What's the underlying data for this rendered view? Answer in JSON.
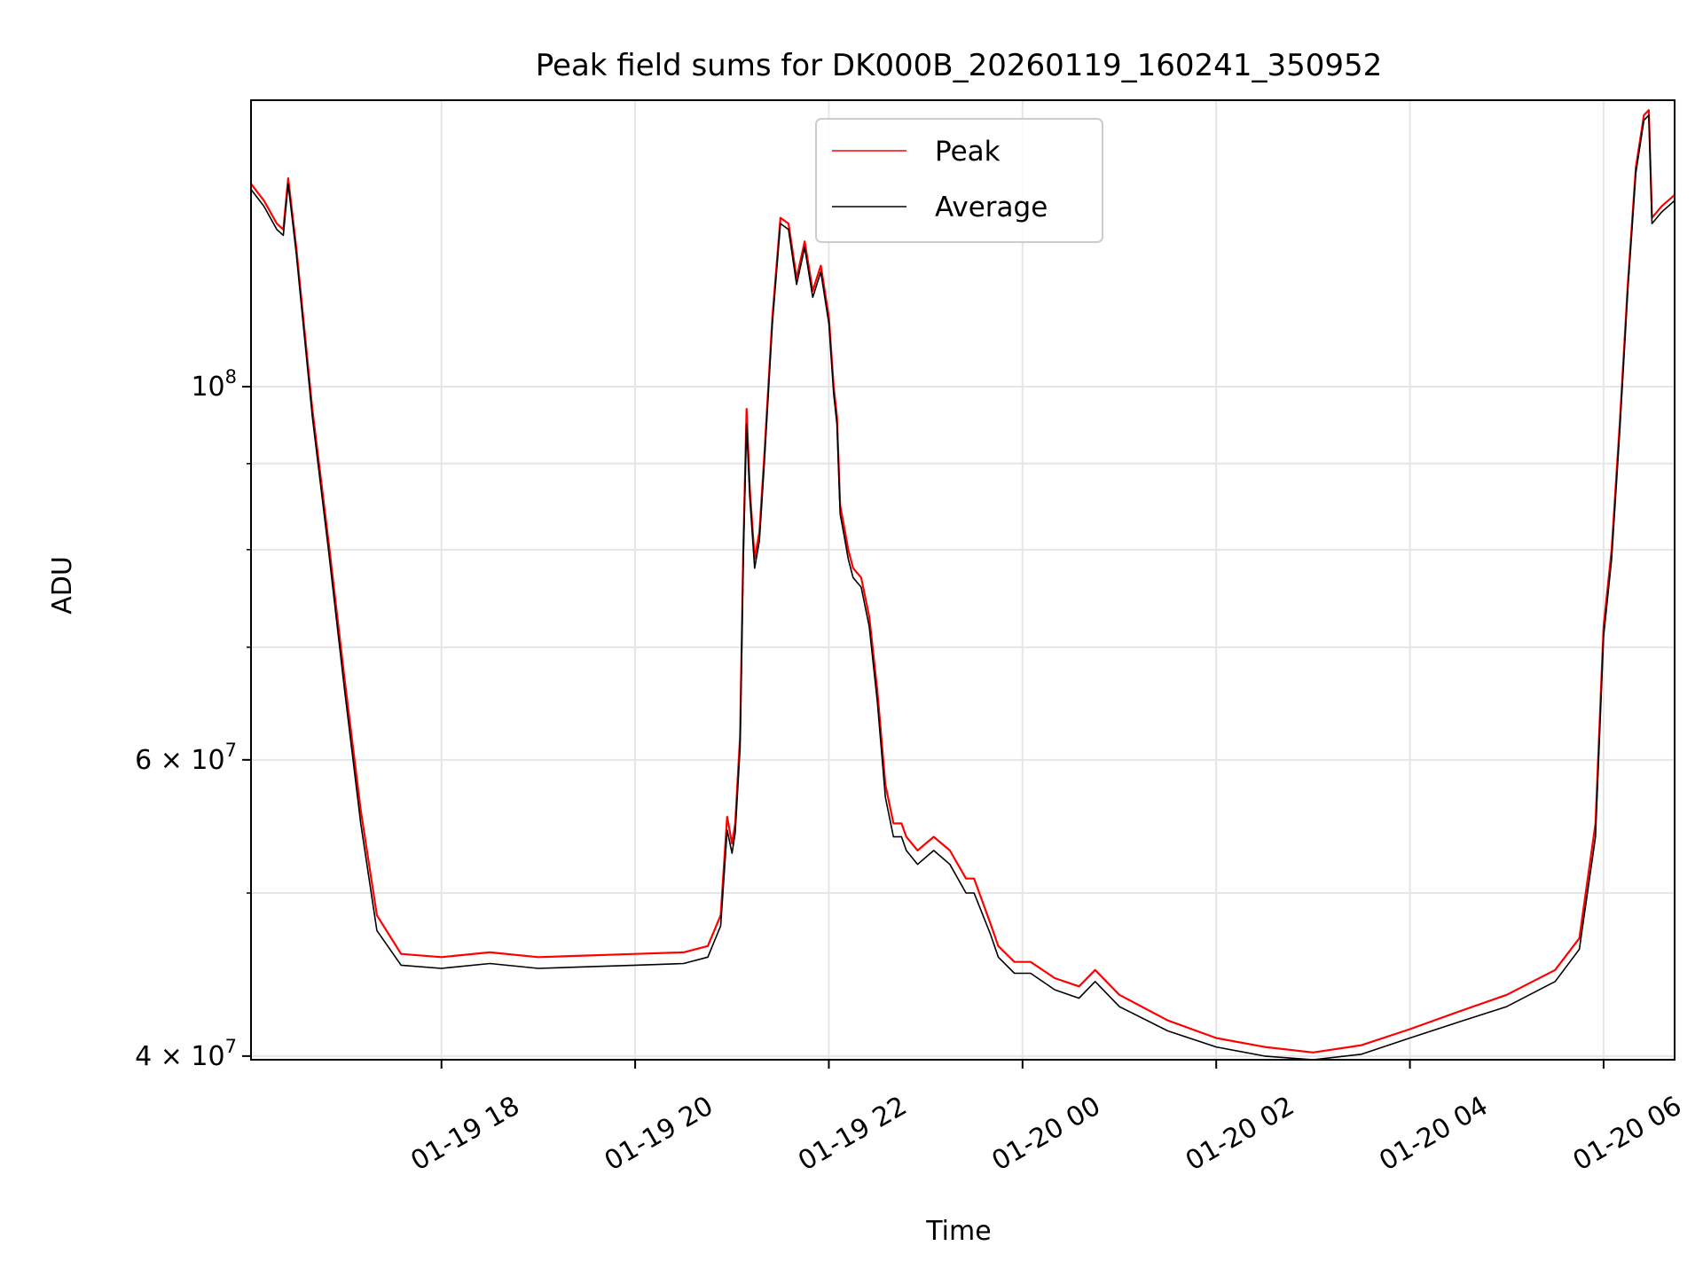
{
  "chart_data": {
    "type": "line",
    "title": "Peak field sums for DK000B_20260119_160241_350952",
    "xlabel": "Time",
    "ylabel": "ADU",
    "y_scale": "log",
    "grid": true,
    "legend_position": "top-center",
    "xlim": [
      "2026-01-19 16:02",
      "2026-01-20 06:44"
    ],
    "ylim": [
      39800000,
      148000000
    ],
    "x_ticks": [
      {
        "t": "2026-01-19 18:00",
        "label": "01-19 18"
      },
      {
        "t": "2026-01-19 20:00",
        "label": "01-19 20"
      },
      {
        "t": "2026-01-19 22:00",
        "label": "01-19 22"
      },
      {
        "t": "2026-01-20 00:00",
        "label": "01-20 00"
      },
      {
        "t": "2026-01-20 02:00",
        "label": "01-20 02"
      },
      {
        "t": "2026-01-20 04:00",
        "label": "01-20 04"
      },
      {
        "t": "2026-01-20 06:00",
        "label": "01-20 06"
      }
    ],
    "y_ticks": [
      {
        "value": 40000000,
        "base": "4 × 10",
        "exp": "7"
      },
      {
        "value": 60000000,
        "base": "6 × 10",
        "exp": "7"
      },
      {
        "value": 100000000,
        "base": "10",
        "exp": "8"
      }
    ],
    "y_minor_ticks": [
      50000000,
      70000000,
      80000000,
      90000000
    ],
    "x": [
      "2026-01-19 16:02",
      "2026-01-19 16:10",
      "2026-01-19 16:18",
      "2026-01-19 16:22",
      "2026-01-19 16:25",
      "2026-01-19 16:30",
      "2026-01-19 16:40",
      "2026-01-19 16:50",
      "2026-01-19 17:00",
      "2026-01-19 17:10",
      "2026-01-19 17:20",
      "2026-01-19 17:35",
      "2026-01-19 18:00",
      "2026-01-19 18:30",
      "2026-01-19 19:00",
      "2026-01-19 19:30",
      "2026-01-19 20:00",
      "2026-01-19 20:30",
      "2026-01-19 20:45",
      "2026-01-19 20:53",
      "2026-01-19 20:57",
      "2026-01-19 21:00",
      "2026-01-19 21:02",
      "2026-01-19 21:05",
      "2026-01-19 21:07",
      "2026-01-19 21:09",
      "2026-01-19 21:11",
      "2026-01-19 21:14",
      "2026-01-19 21:17",
      "2026-01-19 21:20",
      "2026-01-19 21:25",
      "2026-01-19 21:30",
      "2026-01-19 21:35",
      "2026-01-19 21:40",
      "2026-01-19 21:45",
      "2026-01-19 21:50",
      "2026-01-19 21:55",
      "2026-01-19 22:00",
      "2026-01-19 22:03",
      "2026-01-19 22:05",
      "2026-01-19 22:07",
      "2026-01-19 22:10",
      "2026-01-19 22:12",
      "2026-01-19 22:15",
      "2026-01-19 22:20",
      "2026-01-19 22:25",
      "2026-01-19 22:30",
      "2026-01-19 22:35",
      "2026-01-19 22:40",
      "2026-01-19 22:45",
      "2026-01-19 22:48",
      "2026-01-19 22:55",
      "2026-01-19 23:05",
      "2026-01-19 23:15",
      "2026-01-19 23:25",
      "2026-01-19 23:30",
      "2026-01-19 23:40",
      "2026-01-19 23:45",
      "2026-01-19 23:55",
      "2026-01-20 00:05",
      "2026-01-20 00:20",
      "2026-01-20 00:35",
      "2026-01-20 00:45",
      "2026-01-20 01:00",
      "2026-01-20 01:30",
      "2026-01-20 02:00",
      "2026-01-20 02:30",
      "2026-01-20 03:00",
      "2026-01-20 03:30",
      "2026-01-20 04:00",
      "2026-01-20 04:30",
      "2026-01-20 05:00",
      "2026-01-20 05:30",
      "2026-01-20 05:45",
      "2026-01-20 05:55",
      "2026-01-20 06:00",
      "2026-01-20 06:05",
      "2026-01-20 06:10",
      "2026-01-20 06:15",
      "2026-01-20 06:20",
      "2026-01-20 06:25",
      "2026-01-20 06:28",
      "2026-01-20 06:30",
      "2026-01-20 06:36",
      "2026-01-20 06:44"
    ],
    "series": [
      {
        "name": "Peak",
        "color": "#ff0000",
        "values": [
          132000000,
          129000000,
          125000000,
          124000000,
          133000000,
          121000000,
          97000000,
          81000000,
          67000000,
          56000000,
          48500000,
          46000000,
          45800000,
          46100000,
          45800000,
          45900000,
          46000000,
          46100000,
          46500000,
          48500000,
          55500000,
          53500000,
          55000000,
          62000000,
          80000000,
          97000000,
          87000000,
          79000000,
          82000000,
          91000000,
          110000000,
          126000000,
          125000000,
          116000000,
          122000000,
          114000000,
          118000000,
          110000000,
          100000000,
          96000000,
          85000000,
          82000000,
          80000000,
          78000000,
          77000000,
          73000000,
          66000000,
          58000000,
          55000000,
          55000000,
          54000000,
          53000000,
          54000000,
          53000000,
          51000000,
          51000000,
          48000000,
          46500000,
          45500000,
          45500000,
          44500000,
          44000000,
          45000000,
          43500000,
          42000000,
          41000000,
          40500000,
          40200000,
          40600000,
          41500000,
          42500000,
          43500000,
          45000000,
          47000000,
          55000000,
          72000000,
          80000000,
          95000000,
          115000000,
          135000000,
          145000000,
          146000000,
          126000000,
          128000000,
          130000000
        ]
      },
      {
        "name": "Average",
        "color": "#000000",
        "values": [
          131000000,
          128000000,
          124000000,
          123000000,
          132000000,
          120000000,
          96000000,
          80000000,
          66000000,
          55000000,
          47500000,
          45300000,
          45100000,
          45400000,
          45100000,
          45200000,
          45300000,
          45400000,
          45800000,
          47800000,
          54500000,
          52800000,
          54300000,
          61000000,
          79000000,
          95000000,
          86000000,
          78000000,
          81000000,
          90000000,
          109000000,
          125000000,
          124000000,
          115000000,
          121000000,
          113000000,
          117000000,
          109000000,
          99000000,
          95000000,
          84000000,
          81000000,
          79000000,
          77000000,
          76000000,
          72000000,
          65000000,
          57000000,
          54000000,
          54000000,
          53000000,
          52000000,
          53000000,
          52000000,
          50000000,
          50000000,
          47300000,
          45800000,
          44800000,
          44800000,
          43800000,
          43300000,
          44300000,
          42800000,
          41400000,
          40500000,
          40000000,
          39800000,
          40100000,
          41000000,
          41900000,
          42800000,
          44300000,
          46300000,
          54000000,
          71000000,
          79000000,
          94000000,
          114000000,
          134000000,
          144000000,
          145000000,
          125000000,
          127000000,
          129000000
        ]
      }
    ]
  }
}
